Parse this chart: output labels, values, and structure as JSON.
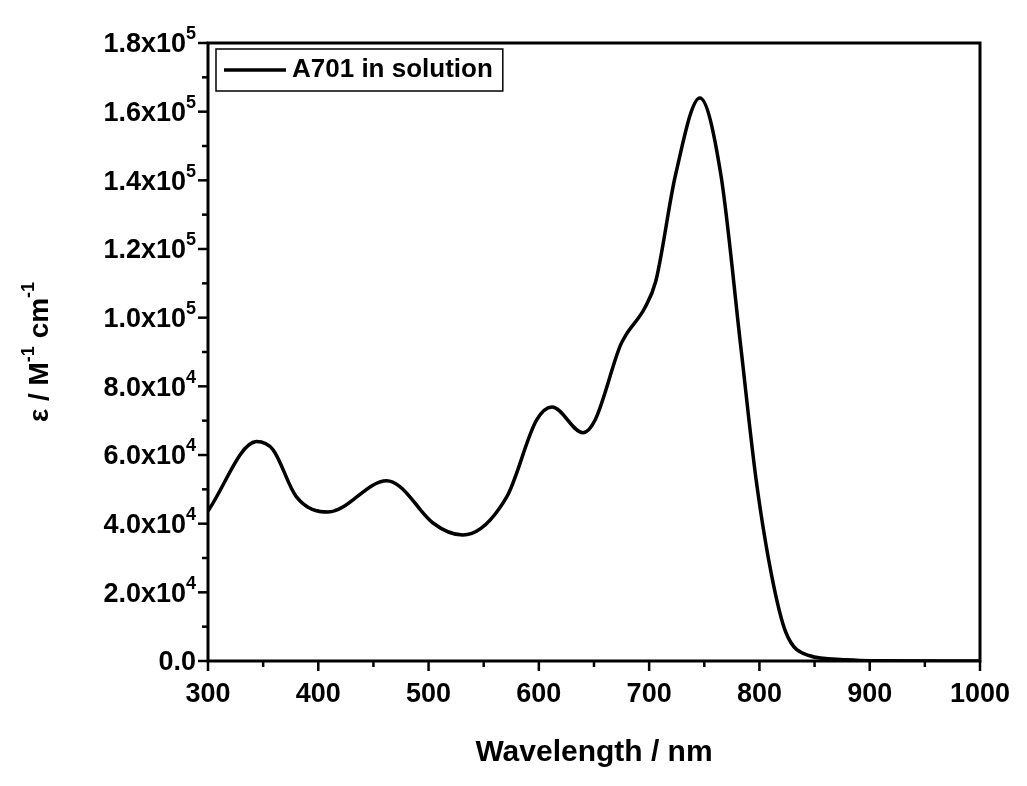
{
  "chart_data": {
    "type": "line",
    "xlabel": "Wavelength / nm",
    "ylabel": "ε / M$^{-1}$ cm$^{-1}$",
    "legend": "top left",
    "grid": false,
    "xlim": [
      300,
      1000
    ],
    "ylim": [
      0,
      180000
    ],
    "xticks": [
      300,
      {
        "value": 350,
        "label": null
      },
      400,
      {
        "value": 450,
        "label": null
      },
      500,
      {
        "value": 550,
        "label": null
      },
      600,
      {
        "value": 650,
        "label": null
      },
      700,
      {
        "value": 750,
        "label": null
      },
      800,
      {
        "value": 850,
        "label": null
      },
      900,
      {
        "value": 950,
        "label": null
      },
      1000
    ],
    "yticks": [
      {
        "value": 0,
        "label": "0.0"
      },
      {
        "value": 10000,
        "label": null
      },
      {
        "value": 20000,
        "label": "2.0x10$^{4}$"
      },
      {
        "value": 30000,
        "label": null
      },
      {
        "value": 40000,
        "label": "4.0x10$^{4}$"
      },
      {
        "value": 50000,
        "label": null
      },
      {
        "value": 60000,
        "label": "6.0x10$^{4}$"
      },
      {
        "value": 70000,
        "label": null
      },
      {
        "value": 80000,
        "label": "8.0x10$^{4}$"
      },
      {
        "value": 90000,
        "label": null
      },
      {
        "value": 100000,
        "label": "1.0x10$^{5}$"
      },
      {
        "value": 110000,
        "label": null
      },
      {
        "value": 120000,
        "label": "1.2x10$^{5}$"
      },
      {
        "value": 130000,
        "label": null
      },
      {
        "value": 140000,
        "label": "1.4x10$^{5}$"
      },
      {
        "value": 150000,
        "label": null
      },
      {
        "value": 160000,
        "label": "1.6x10$^{5}$"
      },
      {
        "value": 170000,
        "label": null
      },
      {
        "value": 180000,
        "label": "1.8x10$^{5}$"
      }
    ],
    "series": [
      {
        "name": "A701 in solution",
        "color": "#000000",
        "x": [
          300,
          344,
          359,
          380,
          409,
          462,
          474,
          504,
          531,
          571,
          598,
          612,
          640,
          651,
          674,
          679,
          696,
          706,
          724,
          746,
          765,
          783,
          797,
          811,
          824,
          845,
          876,
          900,
          1000
        ],
        "values": [
          43700,
          63900,
          61500,
          47900,
          43400,
          52500,
          50800,
          40200,
          36700,
          47900,
          70200,
          74000,
          66500,
          70200,
          92000,
          95000,
          102800,
          110600,
          141700,
          164000,
          141700,
          91800,
          52800,
          25000,
          8300,
          1600,
          400,
          100,
          0
        ]
      }
    ]
  }
}
